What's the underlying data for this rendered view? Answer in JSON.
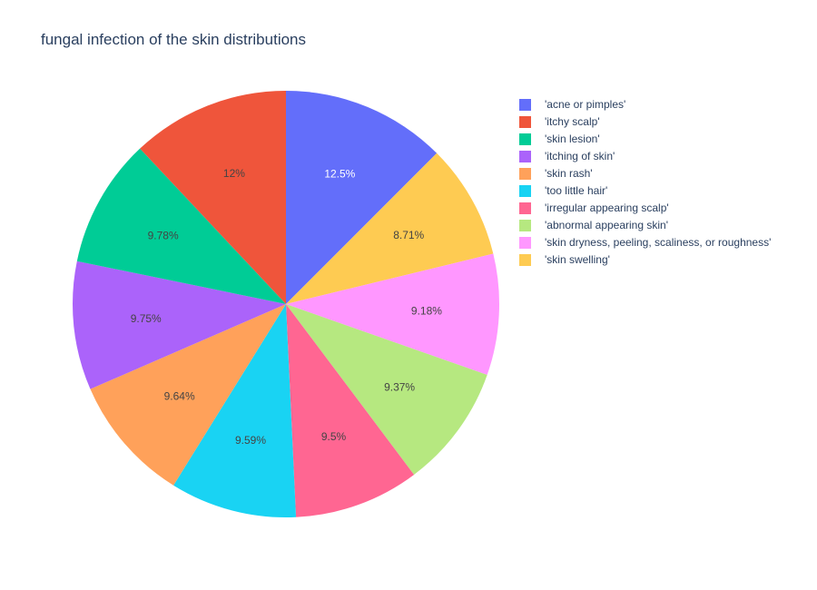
{
  "chart_data": {
    "type": "pie",
    "title": "fungal infection of the skin distributions",
    "legend_position": "right",
    "direction": "clockwise",
    "start_angle": "top",
    "slices": [
      {
        "label": "'acne or pimples'",
        "value": 12.5,
        "text": "12.5%",
        "color": "#636efa",
        "text_color": "#ffffff"
      },
      {
        "label": "'skin swelling'",
        "value": 8.71,
        "text": "8.71%",
        "color": "#fecb52",
        "text_color": "#444444"
      },
      {
        "label": "'skin dryness, peeling, scaliness, or roughness'",
        "value": 9.18,
        "text": "9.18%",
        "color": "#ff97ff",
        "text_color": "#444444"
      },
      {
        "label": "'abnormal appearing skin'",
        "value": 9.37,
        "text": "9.37%",
        "color": "#b6e880",
        "text_color": "#444444"
      },
      {
        "label": "'irregular appearing scalp'",
        "value": 9.5,
        "text": "9.5%",
        "color": "#ff6692",
        "text_color": "#444444"
      },
      {
        "label": "'too little hair'",
        "value": 9.59,
        "text": "9.59%",
        "color": "#19d3f3",
        "text_color": "#444444"
      },
      {
        "label": "'skin rash'",
        "value": 9.64,
        "text": "9.64%",
        "color": "#ffa15a",
        "text_color": "#444444"
      },
      {
        "label": "'itching of skin'",
        "value": 9.75,
        "text": "9.75%",
        "color": "#ab63fa",
        "text_color": "#444444"
      },
      {
        "label": "'skin lesion'",
        "value": 9.78,
        "text": "9.78%",
        "color": "#00cc96",
        "text_color": "#444444"
      },
      {
        "label": "'itchy scalp'",
        "value": 12.0,
        "text": "12%",
        "color": "#ef553b",
        "text_color": "#444444"
      }
    ],
    "legend": [
      {
        "label": "'acne or pimples'",
        "color": "#636efa"
      },
      {
        "label": "'itchy scalp'",
        "color": "#ef553b"
      },
      {
        "label": "'skin lesion'",
        "color": "#00cc96"
      },
      {
        "label": "'itching of skin'",
        "color": "#ab63fa"
      },
      {
        "label": "'skin rash'",
        "color": "#ffa15a"
      },
      {
        "label": "'too little hair'",
        "color": "#19d3f3"
      },
      {
        "label": "'irregular appearing scalp'",
        "color": "#ff6692"
      },
      {
        "label": "'abnormal appearing skin'",
        "color": "#b6e880"
      },
      {
        "label": "'skin dryness, peeling, scaliness, or roughness'",
        "color": "#ff97ff"
      },
      {
        "label": "'skin swelling'",
        "color": "#fecb52"
      }
    ]
  }
}
